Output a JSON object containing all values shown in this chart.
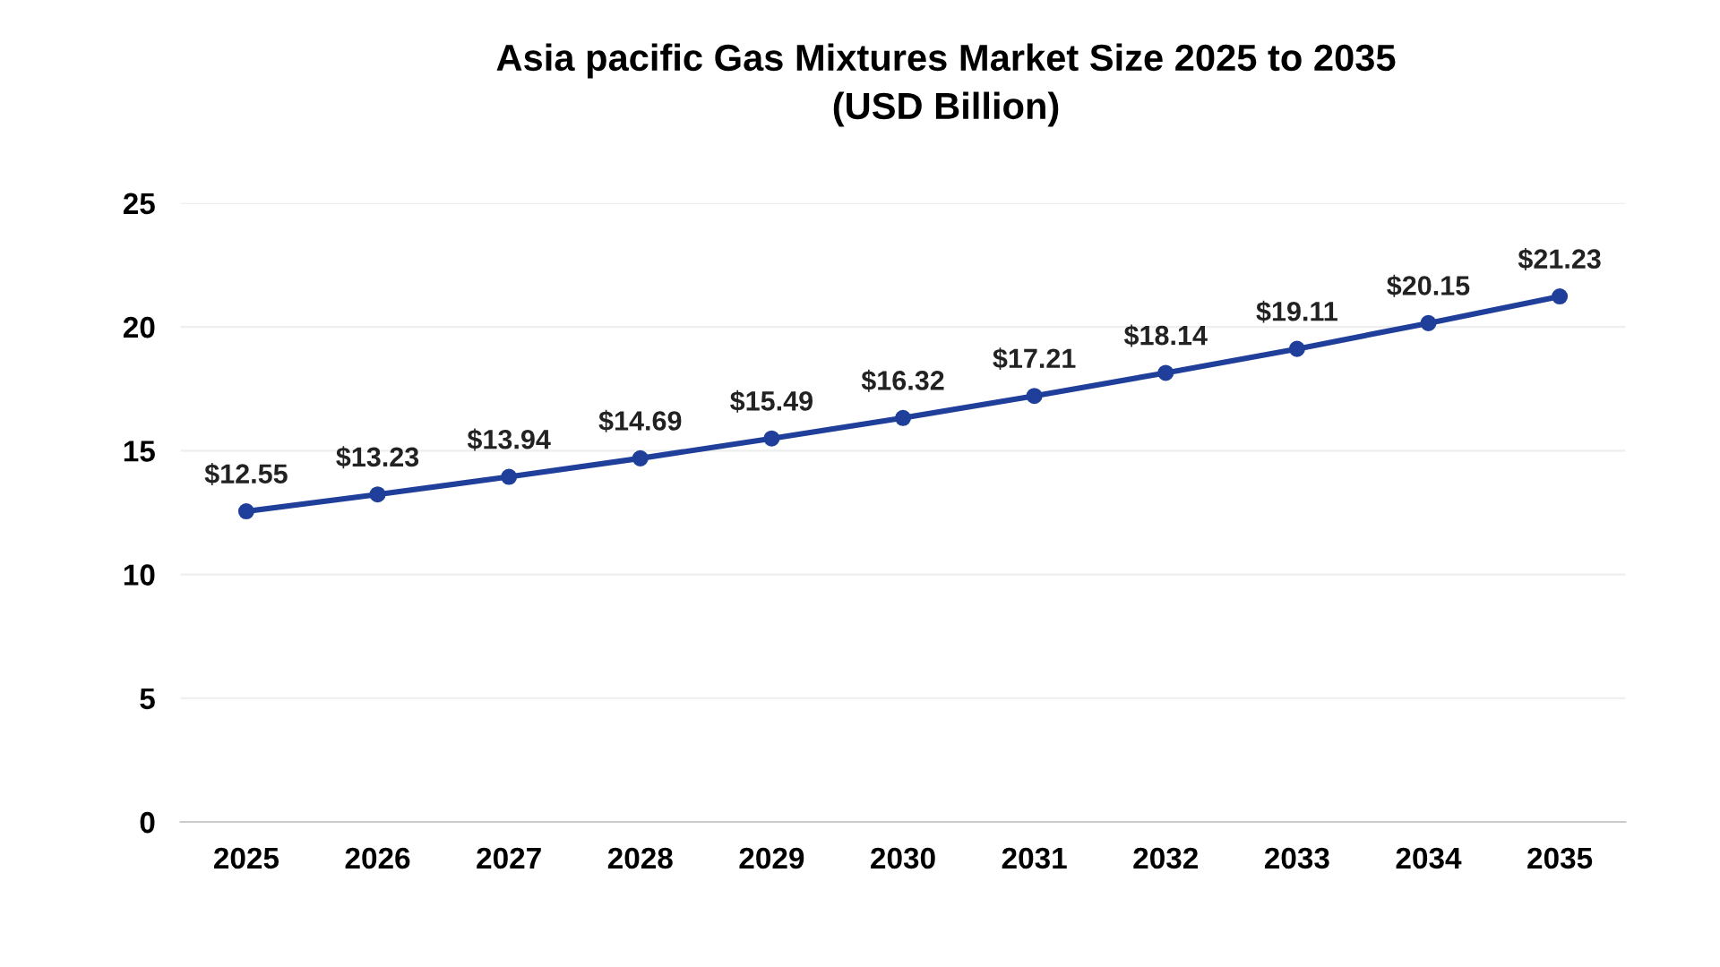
{
  "chart_data": {
    "type": "line",
    "title": "Asia pacific Gas Mixtures Market Size 2025 to 2035\n(USD Billion)",
    "categories": [
      "2025",
      "2026",
      "2027",
      "2028",
      "2029",
      "2030",
      "2031",
      "2032",
      "2033",
      "2034",
      "2035"
    ],
    "series": [
      {
        "color": "#1f3f9a",
        "values": [
          12.55,
          13.23,
          13.94,
          14.69,
          15.49,
          16.32,
          17.21,
          18.14,
          19.11,
          20.15,
          21.23
        ],
        "value_labels": [
          "$12.55",
          "$13.23",
          "$13.94",
          "$14.69",
          "$15.49",
          "$16.32",
          "$17.21",
          "$18.14",
          "$19.11",
          "$20.15",
          "$21.23"
        ]
      }
    ],
    "ylim": [
      0,
      25
    ],
    "yticks": [
      0,
      5,
      10,
      15,
      20,
      25
    ],
    "grid": "y",
    "marker": "circle",
    "line_style": "solid",
    "legend": false
  }
}
